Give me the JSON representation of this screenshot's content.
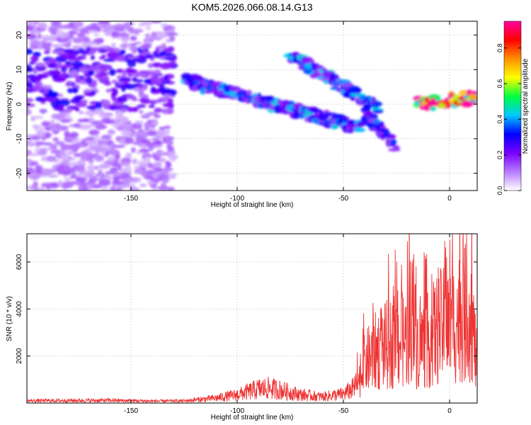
{
  "figure": {
    "title": "KOM5.2026.066.08.14.G13"
  },
  "chart_data": [
    {
      "type": "heatmap",
      "name": "spectrogram",
      "xlabel": "Height of straight line (km)",
      "ylabel": "Frequency (Hz)",
      "xlim": [
        -199,
        13
      ],
      "ylim": [
        -25,
        24
      ],
      "xticks": [
        -150,
        -100,
        -50,
        0
      ],
      "yticks": [
        -20,
        -10,
        0,
        10,
        20
      ],
      "grid": true,
      "colorbar": {
        "label": "Normalized spectral amplitude",
        "range": [
          0,
          0.95
        ],
        "ticks": [
          0.0,
          0.2,
          0.4,
          0.6,
          0.8
        ],
        "colors": [
          "#ffffff",
          "#b67bff",
          "#7a00ff",
          "#0000ff",
          "#00c8ff",
          "#00ff40",
          "#ffff00",
          "#ff9000",
          "#ff0000",
          "#ff00a0"
        ]
      },
      "tracks": [
        {
          "name": "scattered noise",
          "x": [
            -199,
            -130
          ],
          "y": [
            -25,
            24
          ],
          "amp": 0.12
        },
        {
          "name": "main descending band",
          "x": [
            -125,
            -42
          ],
          "y": [
            7,
            -7
          ],
          "amp": 0.35
        },
        {
          "name": "upper branch",
          "x": [
            -75,
            -33
          ],
          "y": [
            14,
            -1
          ],
          "amp": 0.35
        },
        {
          "name": "right branch",
          "x": [
            -40,
            -25
          ],
          "y": [
            -3,
            -12
          ],
          "amp": 0.3
        },
        {
          "name": "strong signal",
          "x": [
            -15,
            13
          ],
          "y": [
            0,
            2
          ],
          "amp": 0.9
        }
      ]
    },
    {
      "type": "line",
      "name": "snr",
      "xlabel": "Height of straight line (km)",
      "ylabel": "SNR (10 * v/v)",
      "xlim": [
        -199,
        13
      ],
      "ylim": [
        0,
        7200
      ],
      "xticks": [
        -150,
        -100,
        -50,
        0
      ],
      "yticks": [
        2000,
        4000,
        6000
      ],
      "grid": true,
      "color": "#ee3333",
      "series": [
        {
          "name": "SNR envelope",
          "x": [
            -199,
            -180,
            -160,
            -140,
            -125,
            -110,
            -100,
            -90,
            -85,
            -80,
            -70,
            -60,
            -50,
            -45,
            -42,
            -40,
            -35,
            -30,
            -25,
            -20,
            -18,
            -15,
            -10,
            -5,
            0,
            5,
            10,
            13
          ],
          "y": [
            140,
            150,
            160,
            120,
            130,
            300,
            500,
            850,
            900,
            800,
            500,
            380,
            550,
            900,
            1500,
            2400,
            3100,
            3500,
            3700,
            3900,
            5500,
            3500,
            3800,
            4600,
            4700,
            5300,
            5600,
            2200
          ]
        }
      ]
    }
  ]
}
